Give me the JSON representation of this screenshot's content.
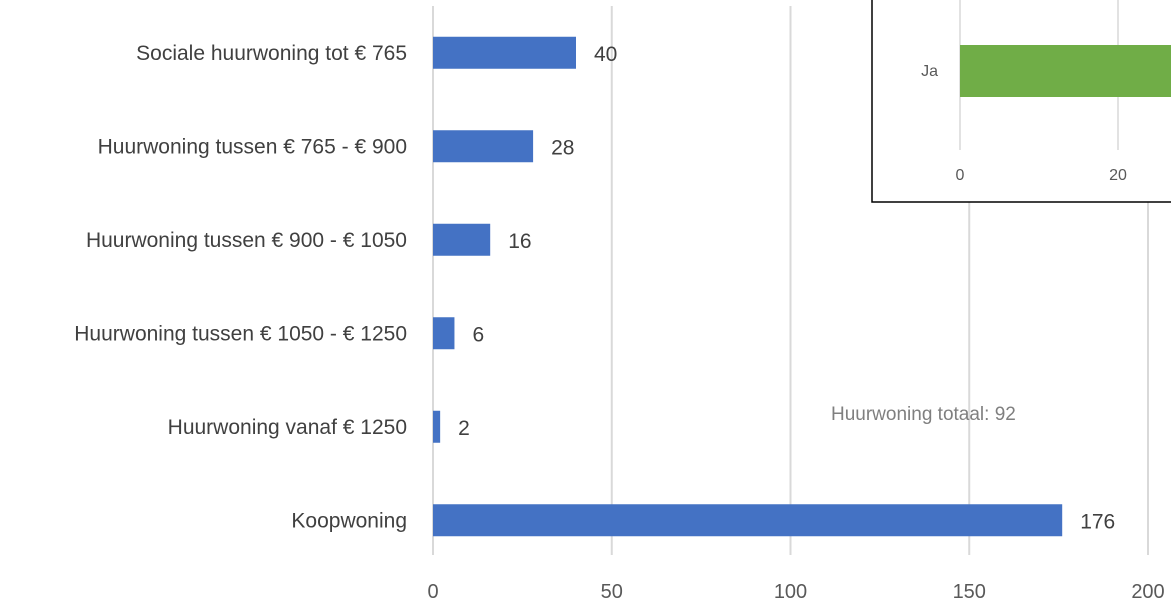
{
  "chart_data": [
    {
      "type": "bar",
      "orientation": "horizontal",
      "categories": [
        "Sociale huurwoning tot € 765",
        "Huurwoning tussen € 765 - € 900",
        "Huurwoning tussen € 900 - € 1050",
        "Huurwoning tussen € 1050 - € 1250",
        "Huurwoning vanaf € 1250",
        "Koopwoning"
      ],
      "values": [
        40,
        28,
        16,
        6,
        2,
        176
      ],
      "xlim": [
        0,
        200
      ],
      "x_ticks": [
        "0",
        "50",
        "100",
        "150",
        "200"
      ],
      "grid": "vertical",
      "annotation": "Huurwoning totaal: 92",
      "bar_color": "#4472C4",
      "grid_color": "#D9D9D9"
    },
    {
      "type": "bar",
      "orientation": "horizontal",
      "categories": [
        "Ja"
      ],
      "x_ticks": [
        "0",
        "20"
      ],
      "bar_color": "#70AD47"
    }
  ]
}
